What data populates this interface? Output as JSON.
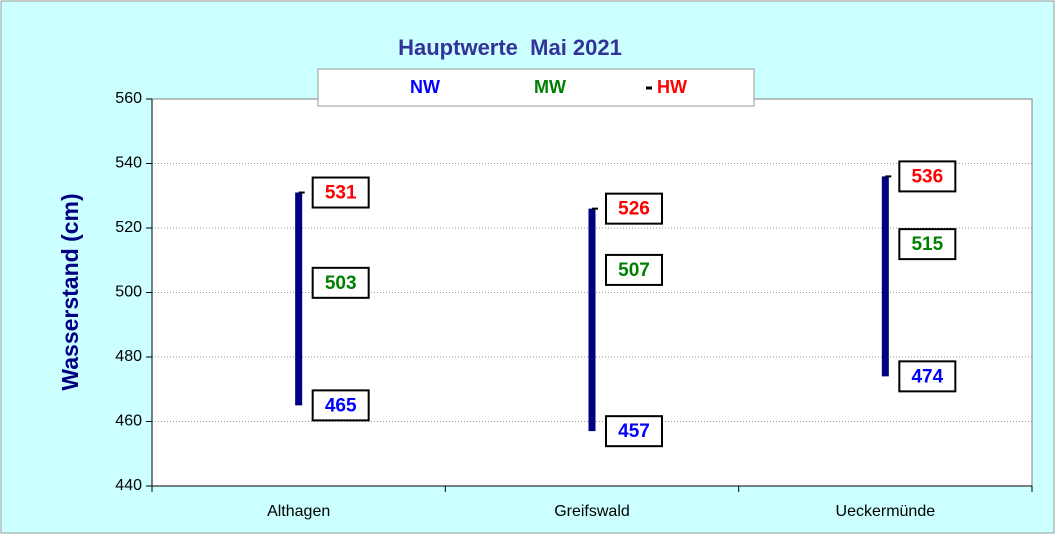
{
  "chart_data": {
    "type": "hilo",
    "title": "Hauptwerte  Mai 2021",
    "y_label": "Wasserstand (cm)",
    "categories": [
      "Althagen",
      "Greifswald",
      "Ueckermünde"
    ],
    "series": [
      {
        "name": "NW",
        "color": "#0000ff",
        "values": [
          465,
          457,
          474
        ]
      },
      {
        "name": "MW",
        "color": "#008000",
        "values": [
          503,
          507,
          515
        ]
      },
      {
        "name": "HW",
        "color": "#ff0000",
        "values": [
          531,
          526,
          536
        ]
      }
    ],
    "bar_color": "#000080",
    "ylim": [
      440,
      560
    ],
    "yticks": [
      440,
      460,
      480,
      500,
      520,
      540,
      560
    ],
    "grid": true
  }
}
